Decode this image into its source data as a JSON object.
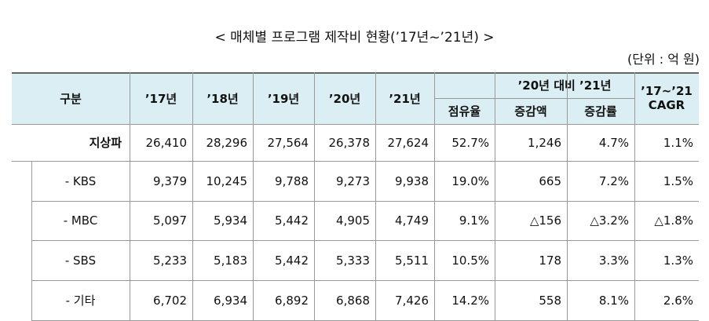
{
  "header": {
    "title": "< 매체별 프로그램 제작비 현황(’17년~’21년) >",
    "unit": "(단위 : 억 원)"
  },
  "table": {
    "header_top": [
      "구분",
      "’17년",
      "’18년",
      "’19년",
      "’20년",
      "’21년",
      "’20년 대비 ’21년"
    ],
    "header_bottom": [
      "점유율",
      "증감액",
      "증감률"
    ],
    "cagr_header": [
      "’17~’21",
      "CAGR"
    ],
    "rows": [
      [
        "지상파",
        "26,410",
        "28,296",
        "27,564",
        "26,378",
        "27,624",
        "52.7%",
        "1,246",
        "4.7%",
        "1.1%"
      ],
      [
        "- KBS",
        "9,379",
        "10,245",
        "9,788",
        "9,273",
        "9,938",
        "19.0%",
        "665",
        "7.2%",
        "1.5%"
      ],
      [
        "- MBC",
        "5,097",
        "5,934",
        "5,442",
        "4,905",
        "4,749",
        "9.1%",
        "△156",
        "△3.2%",
        "△1.8%"
      ],
      [
        "- SBS",
        "5,233",
        "5,183",
        "5,442",
        "5,333",
        "5,511",
        "10.5%",
        "178",
        "3.3%",
        "1.3%"
      ],
      [
        "- 기타",
        "6,702",
        "6,934",
        "6,892",
        "6,868",
        "7,426",
        "14.2%",
        "558",
        "8.1%",
        "2.6%"
      ]
    ]
  }
}
